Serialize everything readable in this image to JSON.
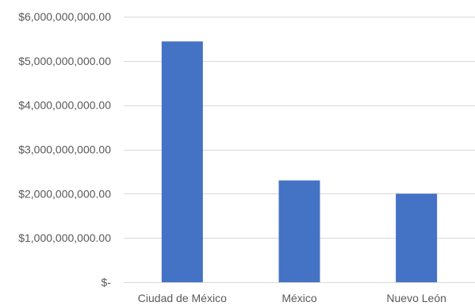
{
  "chart_data": {
    "type": "bar",
    "title": "",
    "xlabel": "",
    "ylabel": "",
    "categories": [
      "Ciudad de México",
      "México",
      "Nuevo León"
    ],
    "values": [
      5440000000,
      2300000000,
      2000000000
    ],
    "ylim": [
      0,
      6000000000
    ],
    "yticks": [
      0,
      1000000000,
      2000000000,
      3000000000,
      4000000000,
      5000000000,
      6000000000
    ],
    "ytick_labels": [
      "$-",
      "$1,000,000,000.00",
      "$2,000,000,000.00",
      "$3,000,000,000.00",
      "$4,000,000,000.00",
      "$5,000,000,000.00",
      "$6,000,000,000.00"
    ],
    "grid": true,
    "legend": "none",
    "bar_color": "#4472c4",
    "grid_color": "#d9d9d9",
    "text_color": "#595959"
  }
}
